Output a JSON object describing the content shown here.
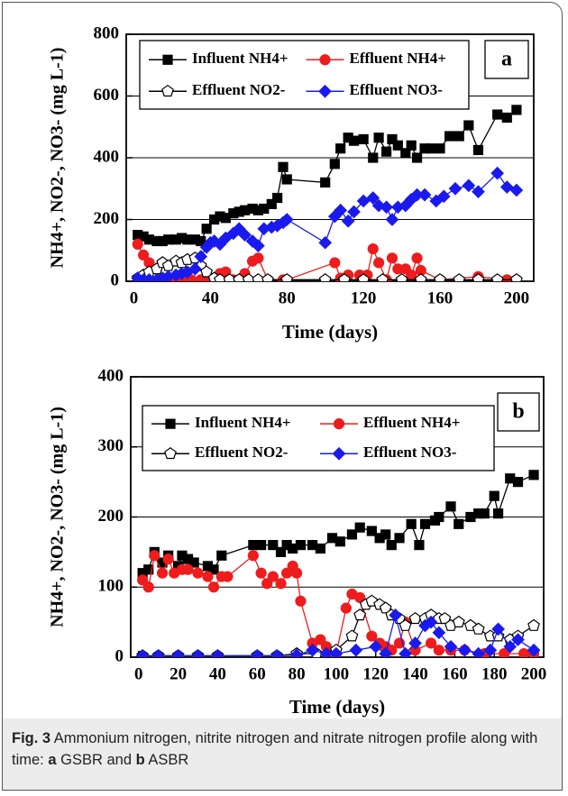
{
  "chart_data": [
    {
      "type": "line",
      "panel_label": "a",
      "xlabel": "Time (days)",
      "ylabel": "NH4+, NO2-, NO3- (mg L-1)",
      "xlim": [
        -4,
        209
      ],
      "ylim": [
        0,
        800
      ],
      "xticks": [
        0,
        40,
        80,
        120,
        160,
        200
      ],
      "yticks": [
        0,
        200,
        400,
        600,
        800
      ],
      "grid": true,
      "series": [
        {
          "name": "Influent NH4+",
          "color": "#000000",
          "marker": "square",
          "filled": true,
          "x": [
            2,
            5,
            8,
            12,
            15,
            18,
            22,
            25,
            28,
            32,
            35,
            38,
            42,
            45,
            48,
            52,
            55,
            58,
            62,
            65,
            68,
            72,
            75,
            78,
            80,
            100,
            105,
            108,
            112,
            115,
            120,
            125,
            128,
            132,
            135,
            138,
            142,
            145,
            148,
            152,
            155,
            160,
            165,
            170,
            175,
            180,
            190,
            195,
            200
          ],
          "values": [
            150,
            145,
            135,
            130,
            130,
            135,
            135,
            140,
            135,
            135,
            130,
            170,
            200,
            210,
            205,
            220,
            225,
            230,
            235,
            230,
            235,
            250,
            270,
            370,
            330,
            320,
            380,
            430,
            465,
            455,
            460,
            400,
            465,
            420,
            460,
            440,
            415,
            440,
            400,
            430,
            430,
            430,
            470,
            470,
            505,
            425,
            540,
            530,
            555
          ]
        },
        {
          "name": "Effluent NH4+",
          "color": "#ee1c1c",
          "marker": "circle",
          "filled": true,
          "x": [
            2,
            5,
            8,
            12,
            15,
            20,
            25,
            30,
            35,
            40,
            45,
            48,
            52,
            58,
            62,
            65,
            70,
            78,
            80,
            105,
            108,
            112,
            118,
            122,
            125,
            128,
            132,
            135,
            138,
            142,
            145,
            148,
            150,
            160,
            180,
            195,
            200
          ],
          "values": [
            120,
            85,
            60,
            40,
            10,
            5,
            5,
            5,
            5,
            5,
            25,
            30,
            5,
            25,
            65,
            75,
            5,
            5,
            5,
            60,
            10,
            20,
            20,
            20,
            105,
            60,
            5,
            75,
            40,
            40,
            20,
            75,
            35,
            5,
            15,
            5,
            5
          ]
        },
        {
          "name": "Effluent NO2-",
          "color": "#000000",
          "marker": "pentagon",
          "filled": false,
          "x": [
            2,
            5,
            8,
            12,
            15,
            18,
            22,
            25,
            28,
            32,
            35,
            38,
            42,
            45,
            50,
            55,
            60,
            65,
            70,
            80,
            100,
            110,
            120,
            130,
            140,
            150,
            160,
            170,
            180,
            190,
            200
          ],
          "values": [
            10,
            20,
            30,
            40,
            60,
            50,
            65,
            60,
            70,
            75,
            50,
            30,
            10,
            5,
            5,
            5,
            5,
            5,
            5,
            5,
            5,
            5,
            5,
            5,
            5,
            5,
            5,
            5,
            5,
            5,
            5
          ]
        },
        {
          "name": "Effluent NO3-",
          "color": "#1a1aee",
          "marker": "diamond",
          "filled": true,
          "x": [
            2,
            5,
            8,
            12,
            15,
            18,
            22,
            25,
            28,
            32,
            35,
            38,
            40,
            42,
            45,
            48,
            52,
            55,
            58,
            62,
            65,
            68,
            72,
            75,
            78,
            80,
            100,
            105,
            108,
            112,
            115,
            120,
            125,
            128,
            132,
            135,
            138,
            142,
            145,
            148,
            152,
            158,
            162,
            168,
            175,
            180,
            190,
            195,
            200
          ],
          "values": [
            10,
            5,
            5,
            5,
            10,
            15,
            20,
            25,
            30,
            40,
            80,
            110,
            125,
            130,
            120,
            140,
            155,
            170,
            150,
            130,
            115,
            170,
            175,
            180,
            190,
            200,
            125,
            210,
            230,
            195,
            225,
            260,
            270,
            245,
            240,
            200,
            240,
            245,
            265,
            280,
            280,
            260,
            275,
            300,
            310,
            290,
            350,
            305,
            295
          ]
        }
      ]
    },
    {
      "type": "line",
      "panel_label": "b",
      "xlabel": "Time (days)",
      "ylabel": "NH4+, NO2-, NO3- (mg L-1)",
      "xlim": [
        -4,
        205
      ],
      "ylim": [
        0,
        400
      ],
      "xticks": [
        0,
        20,
        40,
        60,
        80,
        100,
        120,
        140,
        160,
        180,
        200
      ],
      "yticks": [
        0,
        100,
        200,
        300,
        400
      ],
      "grid": true,
      "series": [
        {
          "name": "Influent NH4+",
          "color": "#000000",
          "marker": "square",
          "filled": true,
          "x": [
            2,
            5,
            8,
            12,
            15,
            20,
            22,
            25,
            28,
            35,
            38,
            42,
            58,
            62,
            68,
            72,
            75,
            78,
            82,
            88,
            92,
            98,
            102,
            108,
            112,
            118,
            122,
            125,
            128,
            132,
            138,
            142,
            145,
            150,
            152,
            158,
            162,
            168,
            172,
            175,
            180,
            182,
            188,
            192,
            200
          ],
          "values": [
            120,
            125,
            150,
            135,
            145,
            130,
            145,
            140,
            135,
            130,
            125,
            145,
            160,
            160,
            160,
            150,
            160,
            155,
            160,
            160,
            155,
            170,
            165,
            175,
            185,
            180,
            170,
            175,
            160,
            170,
            190,
            160,
            190,
            195,
            200,
            215,
            190,
            200,
            205,
            205,
            230,
            205,
            255,
            250,
            260
          ]
        },
        {
          "name": "Effluent NH4+",
          "color": "#ee1c1c",
          "marker": "circle",
          "filled": true,
          "x": [
            2,
            5,
            8,
            12,
            15,
            18,
            22,
            25,
            30,
            35,
            38,
            42,
            45,
            58,
            62,
            65,
            68,
            72,
            75,
            78,
            80,
            82,
            88,
            92,
            95,
            100,
            105,
            108,
            112,
            118,
            122,
            125,
            128,
            132,
            135,
            140,
            148,
            152,
            158,
            165,
            175,
            185,
            195,
            200
          ],
          "values": [
            110,
            100,
            145,
            120,
            140,
            120,
            125,
            125,
            120,
            115,
            100,
            115,
            115,
            145,
            120,
            105,
            115,
            105,
            120,
            130,
            120,
            80,
            20,
            25,
            15,
            5,
            70,
            90,
            85,
            30,
            20,
            15,
            10,
            20,
            50,
            10,
            20,
            10,
            10,
            10,
            5,
            5,
            5,
            5
          ]
        },
        {
          "name": "Effluent NO2-",
          "color": "#000000",
          "marker": "pentagon",
          "filled": false,
          "x": [
            2,
            10,
            20,
            30,
            40,
            60,
            70,
            80,
            90,
            100,
            108,
            112,
            115,
            118,
            122,
            125,
            128,
            132,
            135,
            140,
            145,
            148,
            152,
            155,
            158,
            162,
            168,
            172,
            178,
            182,
            188,
            192,
            200
          ],
          "values": [
            2,
            2,
            2,
            2,
            2,
            2,
            2,
            5,
            5,
            10,
            30,
            60,
            75,
            80,
            75,
            70,
            60,
            55,
            45,
            55,
            55,
            60,
            55,
            55,
            45,
            50,
            45,
            40,
            30,
            30,
            25,
            30,
            45
          ]
        },
        {
          "name": "Effluent NO3-",
          "color": "#1a1aee",
          "marker": "diamond",
          "filled": true,
          "x": [
            2,
            10,
            20,
            30,
            40,
            60,
            70,
            80,
            88,
            95,
            100,
            110,
            120,
            125,
            130,
            135,
            140,
            145,
            148,
            152,
            158,
            165,
            172,
            178,
            182,
            188,
            192,
            200
          ],
          "values": [
            2,
            2,
            2,
            2,
            2,
            2,
            2,
            3,
            10,
            5,
            5,
            10,
            15,
            5,
            60,
            5,
            20,
            45,
            50,
            35,
            15,
            10,
            5,
            10,
            40,
            15,
            25,
            10
          ]
        }
      ]
    }
  ],
  "caption": {
    "label": "Fig. 3",
    "parts": [
      "Ammonium nitrogen, nitrite nitrogen and nitrate nitrogen profile along with time: ",
      "a",
      " GSBR and ",
      "b",
      " ASBR"
    ]
  }
}
